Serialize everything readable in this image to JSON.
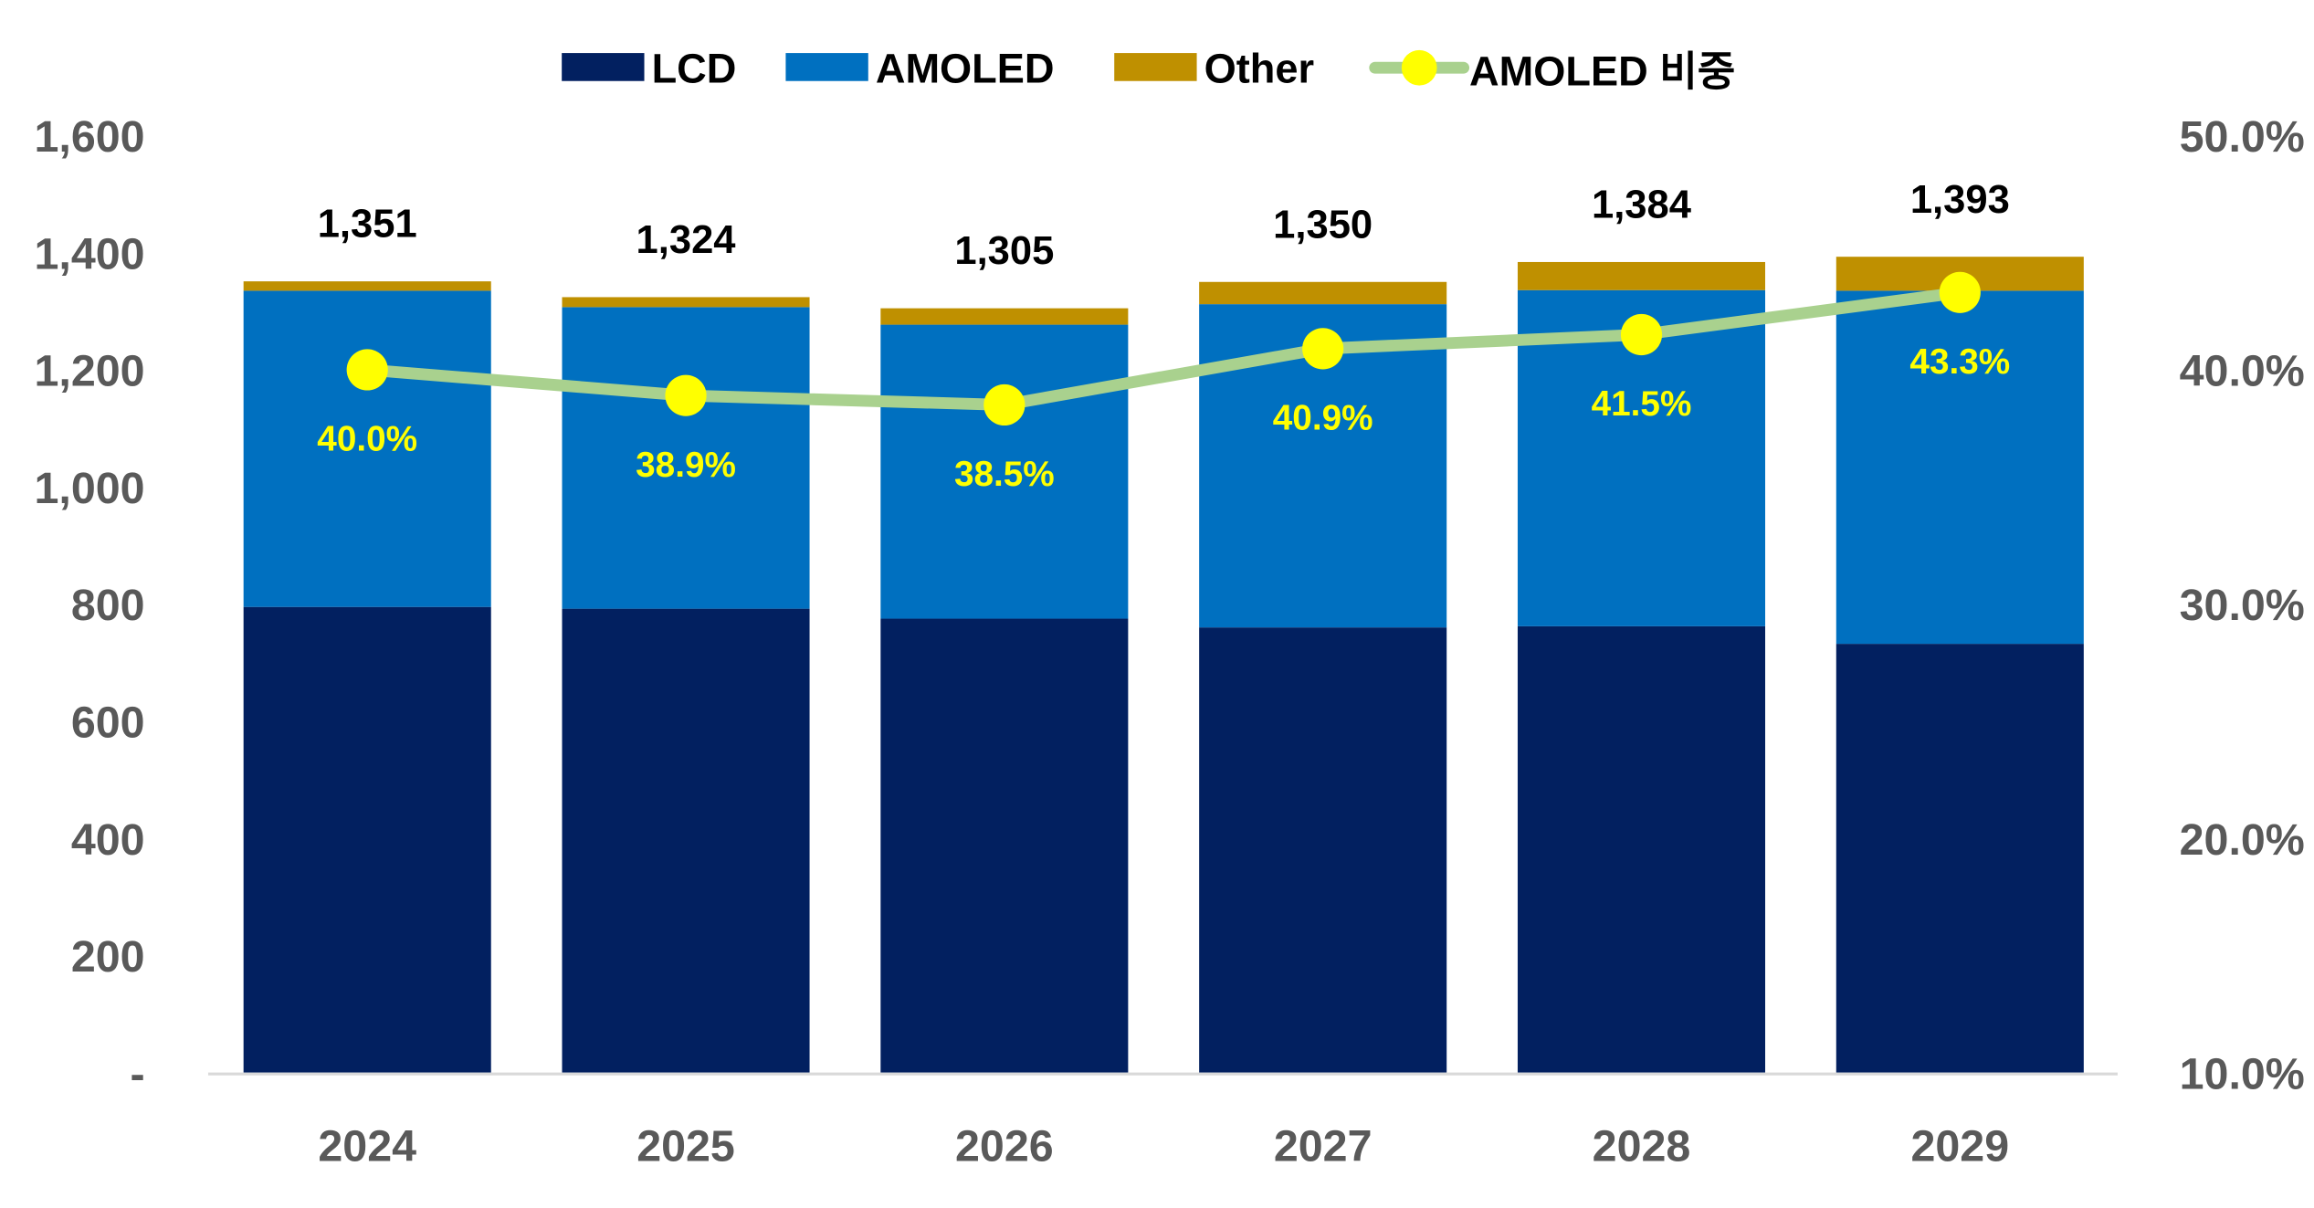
{
  "chart_data": {
    "type": "bar",
    "stacked": true,
    "categories": [
      "2024",
      "2025",
      "2026",
      "2027",
      "2028",
      "2029"
    ],
    "series": [
      {
        "name": "LCD",
        "color": "#022060",
        "values": [
          795,
          792,
          775,
          760,
          762,
          732
        ]
      },
      {
        "name": "AMOLED",
        "color": "#0070c0",
        "values": [
          540,
          515,
          502,
          552,
          574,
          603
        ]
      },
      {
        "name": "Other",
        "color": "#bf9000",
        "values": [
          16,
          17,
          28,
          38,
          48,
          58
        ]
      }
    ],
    "totals": [
      "1,351",
      "1,324",
      "1,305",
      "1,350",
      "1,384",
      "1,393"
    ],
    "line_series": {
      "name": "AMOLED 비중",
      "axis": "right",
      "line_color": "#a9d18e",
      "marker_color": "#ffff00",
      "values": [
        40.0,
        38.9,
        38.5,
        40.9,
        41.5,
        43.3
      ],
      "labels": [
        "40.0%",
        "38.9%",
        "38.5%",
        "40.9%",
        "41.5%",
        "43.3%"
      ]
    },
    "ylim": [
      0,
      1600
    ],
    "yticks": [
      "-",
      "200",
      "400",
      "600",
      "800",
      "1,000",
      "1,200",
      "1,400",
      "1,600"
    ],
    "y2lim": [
      10,
      50
    ],
    "y2ticks": [
      "10.0%",
      "20.0%",
      "30.0%",
      "40.0%",
      "50.0%"
    ],
    "legend": "top",
    "grid": false
  }
}
